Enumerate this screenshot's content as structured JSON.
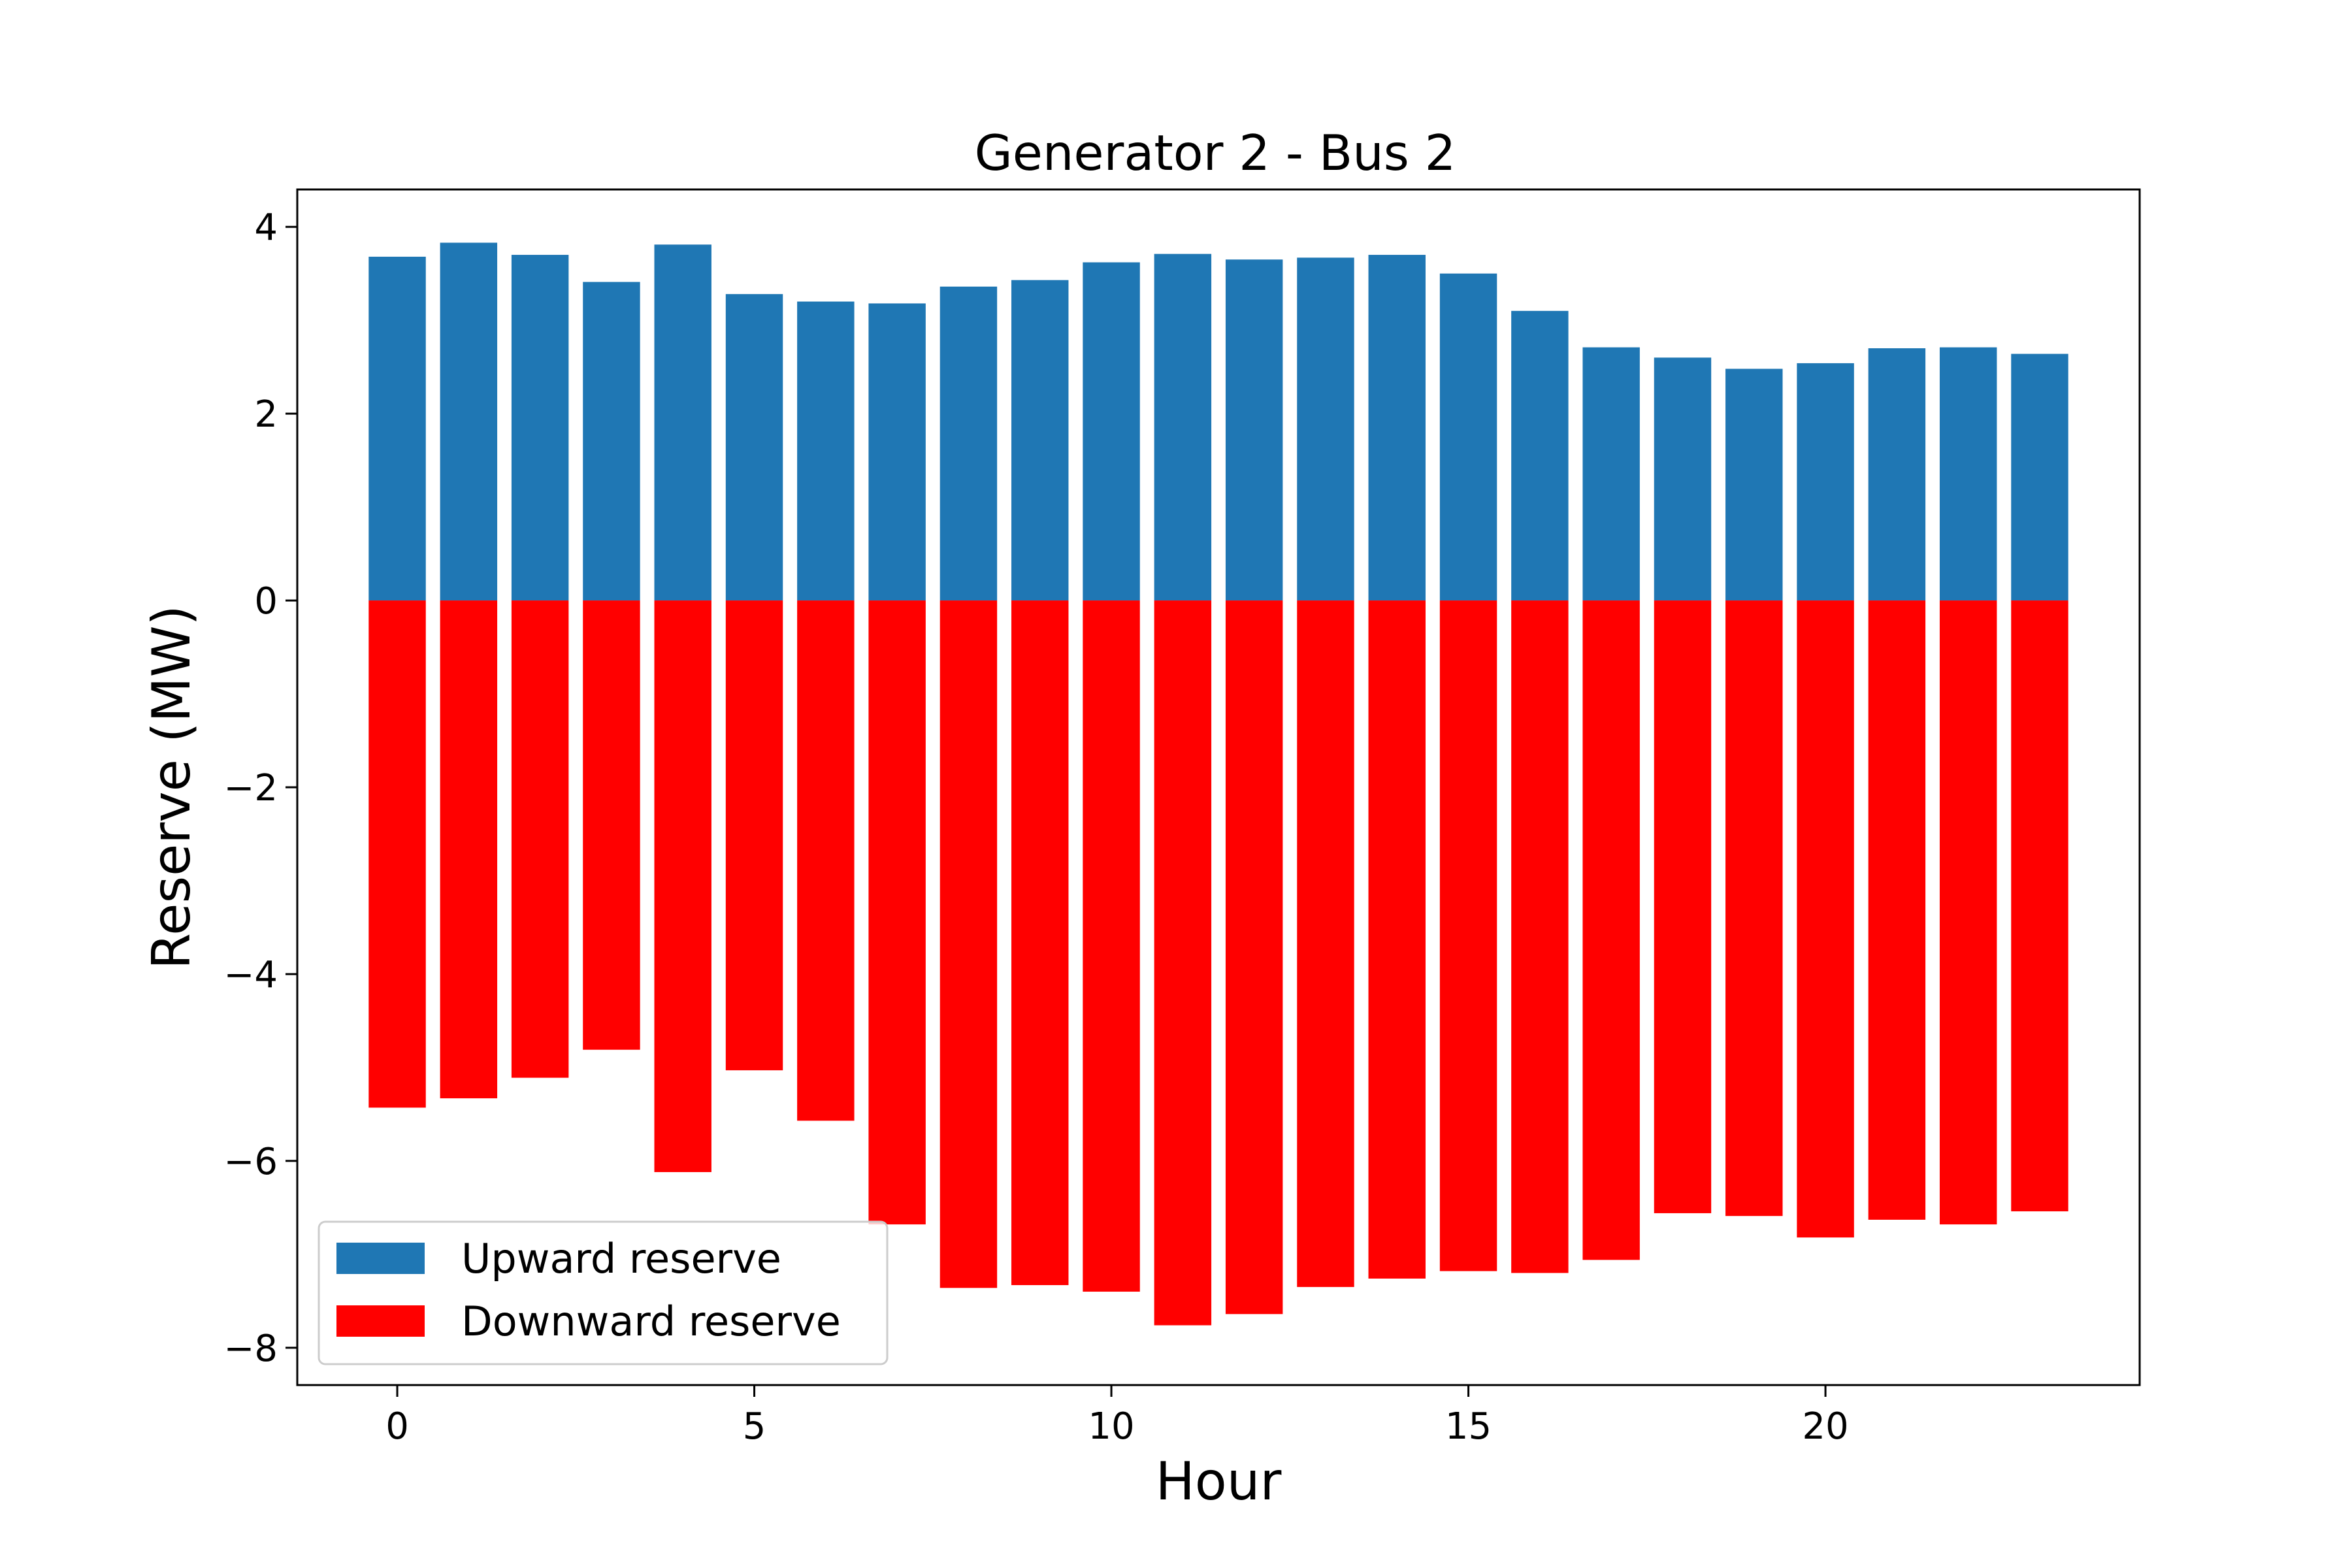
{
  "chart_data": {
    "type": "bar",
    "title": "Generator 2 - Bus 2",
    "xlabel": "Hour",
    "ylabel": "Reserve (MW)",
    "x": [
      0,
      1,
      2,
      3,
      4,
      5,
      6,
      7,
      8,
      9,
      10,
      11,
      12,
      13,
      14,
      15,
      16,
      17,
      18,
      19,
      20,
      21,
      22,
      23
    ],
    "series": [
      {
        "name": "Upward reserve",
        "color": "#1f77b4",
        "values": [
          3.68,
          3.83,
          3.7,
          3.41,
          3.81,
          3.28,
          3.2,
          3.18,
          3.36,
          3.43,
          3.62,
          3.71,
          3.65,
          3.67,
          3.7,
          3.5,
          3.1,
          2.71,
          2.6,
          2.48,
          2.54,
          2.7,
          2.71,
          2.64
        ]
      },
      {
        "name": "Downward reserve",
        "color": "#ff0000",
        "values": [
          -5.43,
          -5.33,
          -5.11,
          -4.81,
          -6.12,
          -5.03,
          -5.57,
          -6.68,
          -7.36,
          -7.33,
          -7.4,
          -7.76,
          -7.64,
          -7.35,
          -7.26,
          -7.18,
          -7.2,
          -7.06,
          -6.56,
          -6.59,
          -6.82,
          -6.63,
          -6.68,
          -6.54
        ]
      }
    ],
    "xlim": [
      -1.4,
      24.4
    ],
    "ylim": [
      -8.4,
      4.4
    ],
    "xticks": [
      0,
      5,
      10,
      15,
      20
    ],
    "yticks": [
      4,
      2,
      0,
      -2,
      -4,
      -6,
      -8
    ],
    "ytick_labels": [
      "4",
      "2",
      "0",
      "−2",
      "−4",
      "−6",
      "−8"
    ],
    "bar_width": 0.8,
    "legend_position": "lower-left",
    "grid": false
  }
}
